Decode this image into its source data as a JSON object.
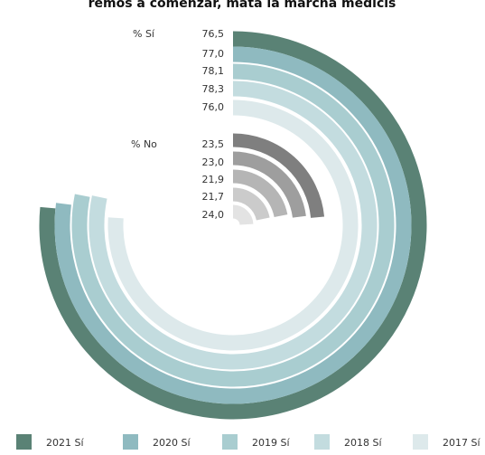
{
  "chart_data": {
    "type": "radial_bar",
    "title": "remos a comenzar, mata la marcha medicis",
    "groups": [
      {
        "label": "% Sí",
        "series": [
          {
            "name": "2021 Sí",
            "color": "#5a8275",
            "values": [
              76.5
            ],
            "value_labels": [
              "76,5"
            ]
          },
          {
            "name": "2020 Sí",
            "color": "#8fbac0",
            "values": [
              77.0
            ],
            "value_labels": [
              "77,0"
            ]
          },
          {
            "name": "2019 Sí",
            "color": "#a9cdd0",
            "values": [
              78.1
            ],
            "value_labels": [
              "78,1"
            ]
          },
          {
            "name": "2018 Sí",
            "color": "#c3dcdf",
            "values": [
              78.3
            ],
            "value_labels": [
              "78,3"
            ]
          },
          {
            "name": "2017 Sí",
            "color": "#dde9eb",
            "values": [
              76.0
            ],
            "value_labels": [
              "76,0"
            ]
          }
        ]
      },
      {
        "label": "% No",
        "series": [
          {
            "color": "#7f7f7f",
            "values": [
              23.5
            ],
            "value_labels": [
              "23,5"
            ]
          },
          {
            "color": "#9e9e9e",
            "values": [
              23.0
            ],
            "value_labels": [
              "23,0"
            ]
          },
          {
            "color": "#b5b5b5",
            "values": [
              21.9
            ],
            "value_labels": [
              "21,9"
            ]
          },
          {
            "color": "#cbcbcb",
            "values": [
              21.7
            ],
            "value_labels": [
              "21,7"
            ]
          },
          {
            "color": "#e3e3e3",
            "values": [
              24.0
            ],
            "value_labels": [
              "24,0"
            ]
          }
        ]
      }
    ],
    "ylim": [
      0,
      100
    ]
  }
}
